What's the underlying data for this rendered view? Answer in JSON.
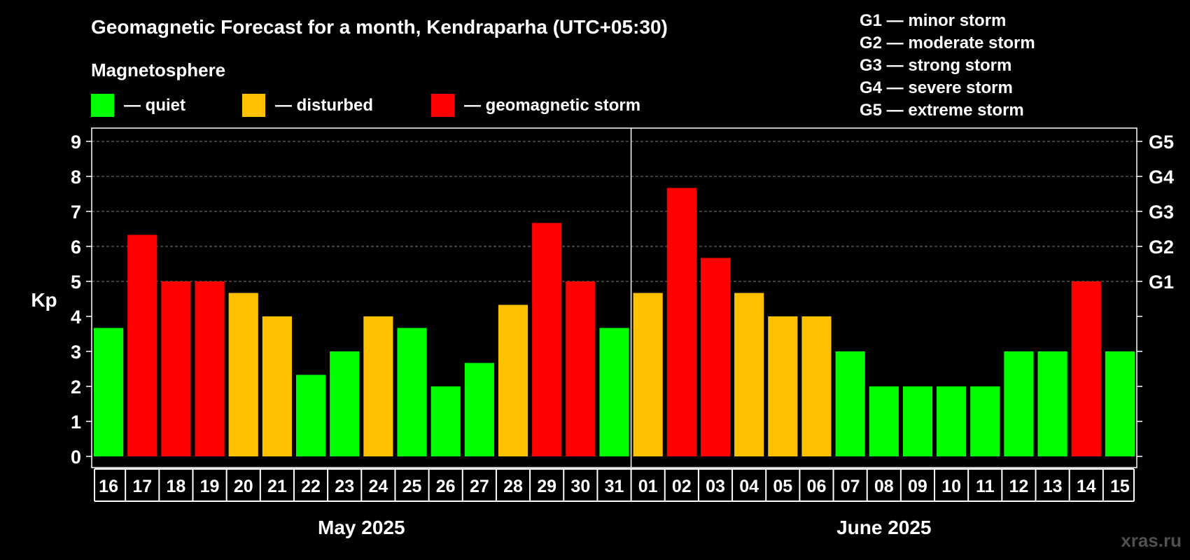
{
  "title": "Geomagnetic Forecast for a month, Kendraparha (UTC+05:30)",
  "legend": {
    "heading": "Magnetosphere",
    "items": [
      {
        "label": "— quiet",
        "color": "#00ff00"
      },
      {
        "label": "— disturbed",
        "color": "#ffc000"
      },
      {
        "label": "— geomagnetic storm",
        "color": "#ff0000"
      }
    ]
  },
  "storm_scale": [
    "G1 — minor storm",
    "G2 — moderate storm",
    "G3 — strong storm",
    "G4 — severe storm",
    "G5 — extreme storm"
  ],
  "watermark": "xras.ru",
  "chart_data": {
    "type": "bar",
    "ylabel": "Kp",
    "ylim": [
      0,
      9
    ],
    "yticks": [
      "0",
      "1",
      "2",
      "3",
      "4",
      "5",
      "6",
      "7",
      "8",
      "9"
    ],
    "right_ticks": [
      {
        "kp": 5,
        "label": "G1"
      },
      {
        "kp": 6,
        "label": "G2"
      },
      {
        "kp": 7,
        "label": "G3"
      },
      {
        "kp": 8,
        "label": "G4"
      },
      {
        "kp": 9,
        "label": "G5"
      }
    ],
    "grid": true,
    "months": [
      {
        "label": "May 2025",
        "start": 0,
        "count": 16
      },
      {
        "label": "June 2025",
        "start": 16,
        "count": 15
      }
    ],
    "categories": [
      "16",
      "17",
      "18",
      "19",
      "20",
      "21",
      "22",
      "23",
      "24",
      "25",
      "26",
      "27",
      "28",
      "29",
      "30",
      "31",
      "01",
      "02",
      "03",
      "04",
      "05",
      "06",
      "07",
      "08",
      "09",
      "10",
      "11",
      "12",
      "13",
      "14",
      "15"
    ],
    "values": [
      3.67,
      6.33,
      5,
      5,
      4.67,
      4,
      2.33,
      3,
      4,
      3.67,
      2,
      2.67,
      4.33,
      6.67,
      5,
      3.67,
      4.67,
      7.67,
      5.67,
      4.67,
      4,
      4,
      3,
      2,
      2,
      2,
      2,
      3,
      3,
      5,
      3
    ],
    "levels": [
      "quiet",
      "storm",
      "storm",
      "storm",
      "disturbed",
      "disturbed",
      "quiet",
      "quiet",
      "disturbed",
      "quiet",
      "quiet",
      "quiet",
      "disturbed",
      "storm",
      "storm",
      "quiet",
      "disturbed",
      "storm",
      "storm",
      "disturbed",
      "disturbed",
      "disturbed",
      "quiet",
      "quiet",
      "quiet",
      "quiet",
      "quiet",
      "quiet",
      "quiet",
      "storm",
      "quiet"
    ],
    "level_colors": {
      "quiet": "#00ff00",
      "disturbed": "#ffc000",
      "storm": "#ff0000"
    }
  }
}
